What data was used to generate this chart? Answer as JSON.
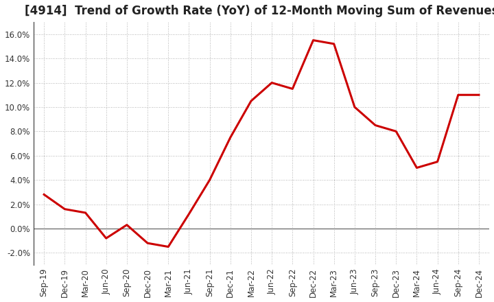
{
  "title": "[4914]  Trend of Growth Rate (YoY) of 12-Month Moving Sum of Revenues",
  "x_labels": [
    "Sep-19",
    "Dec-19",
    "Mar-20",
    "Jun-20",
    "Sep-20",
    "Dec-20",
    "Mar-21",
    "Jun-21",
    "Sep-21",
    "Dec-21",
    "Mar-22",
    "Jun-22",
    "Sep-22",
    "Dec-22",
    "Mar-23",
    "Jun-23",
    "Sep-23",
    "Dec-23",
    "Mar-24",
    "Jun-24",
    "Sep-24",
    "Dec-24"
  ],
  "y_values": [
    0.028,
    0.016,
    0.013,
    -0.008,
    0.003,
    -0.012,
    -0.015,
    0.012,
    0.04,
    0.075,
    0.105,
    0.12,
    0.115,
    0.155,
    0.152,
    0.1,
    0.085,
    0.08,
    0.05,
    0.055,
    0.11,
    0.11
  ],
  "line_color": "#cc0000",
  "background_color": "#ffffff",
  "plot_bg_color": "#ffffff",
  "grid_color": "#999999",
  "zero_line_color": "#666666",
  "spine_color": "#333333",
  "ylim": [
    -0.03,
    0.17
  ],
  "yticks": [
    -0.02,
    0.0,
    0.02,
    0.04,
    0.06,
    0.08,
    0.1,
    0.12,
    0.14,
    0.16
  ],
  "title_fontsize": 12,
  "tick_fontsize": 8.5,
  "line_width": 2.2
}
